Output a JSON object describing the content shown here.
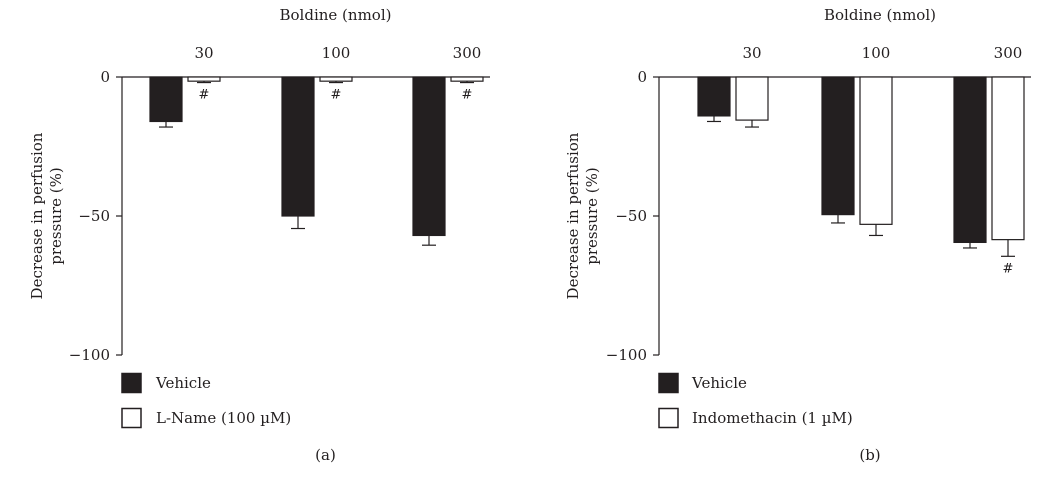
{
  "chart_data": [
    {
      "type": "bar",
      "panel_label": "(a)",
      "xlabel": "Boldine (nmol)",
      "ylabel": "Decrease in perfusion pressure (%)",
      "ylabel_lines": [
        "Decrease in perfusion",
        "pressure (%)"
      ],
      "categories": [
        "30",
        "100",
        "300"
      ],
      "ylim": [
        -100,
        0
      ],
      "yticks": [
        0,
        -50,
        -100
      ],
      "yticklabels": [
        "0",
        "−50",
        "−100"
      ],
      "legend_placement": "bottom-left",
      "series": [
        {
          "name": "Vehicle",
          "fill": "#231f20",
          "values": [
            -16,
            -50,
            -57
          ],
          "errors": [
            2,
            4.5,
            3.5
          ],
          "marks": [
            "",
            "",
            ""
          ]
        },
        {
          "name": "L-Name (100 µM)",
          "fill": "#ffffff",
          "values": [
            -1.5,
            -1.5,
            -1.5
          ],
          "errors": [
            0.5,
            0.5,
            0.5
          ],
          "marks": [
            "#",
            "#",
            "#"
          ]
        }
      ]
    },
    {
      "type": "bar",
      "panel_label": "(b)",
      "xlabel": "Boldine (nmol)",
      "ylabel": "Decrease in perfusion pressure (%)",
      "ylabel_lines": [
        "Decrease in perfusion",
        "pressure (%)"
      ],
      "categories": [
        "30",
        "100",
        "300"
      ],
      "ylim": [
        -100,
        0
      ],
      "yticks": [
        0,
        -50,
        -100
      ],
      "yticklabels": [
        "0",
        "−50",
        "−100"
      ],
      "legend_placement": "bottom-left",
      "series": [
        {
          "name": "Vehicle",
          "fill": "#231f20",
          "values": [
            -14,
            -49.5,
            -59.5
          ],
          "errors": [
            2,
            3,
            2
          ],
          "marks": [
            "",
            "",
            ""
          ]
        },
        {
          "name": "Indomethacin (1 µM)",
          "fill": "#ffffff",
          "values": [
            -15.5,
            -53,
            -58.5
          ],
          "errors": [
            2.5,
            4,
            6
          ],
          "marks": [
            "",
            "",
            "#"
          ]
        }
      ]
    }
  ]
}
